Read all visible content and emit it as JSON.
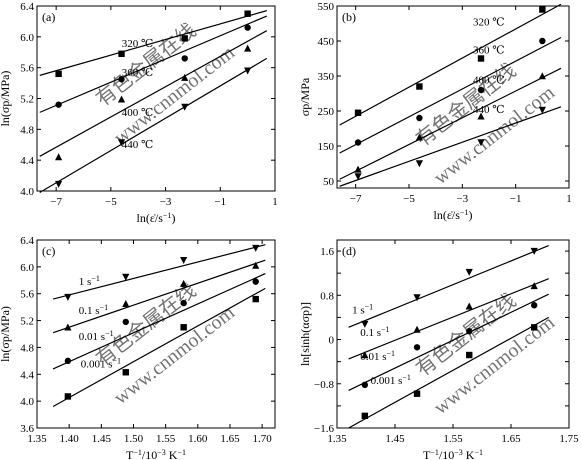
{
  "chart_data": [
    {
      "type": "scatter",
      "panel_label": "(a)",
      "xlabel": "ln(ε̇/s⁻¹)",
      "ylabel": "ln(σp/MPa)",
      "xlim": [
        -7.7,
        1
      ],
      "ylim": [
        4.0,
        6.4
      ],
      "xticks": [
        -7,
        -5,
        -3,
        -1,
        1
      ],
      "xtick_labels": [
        "−7",
        "−5",
        "−3",
        "−1",
        "1"
      ],
      "yticks": [
        4.0,
        4.4,
        4.8,
        5.2,
        5.6,
        6.0,
        6.4
      ],
      "ytick_labels": [
        "4.0",
        "4.4",
        "4.8",
        "5.2",
        "5.6",
        "6.0",
        "6.4"
      ],
      "series": [
        {
          "name": "320 ℃",
          "marker": "square",
          "label_at": [
            -4.6,
            5.87
          ],
          "x": [
            -6.91,
            -4.61,
            -2.3,
            0
          ],
          "y": [
            5.52,
            5.78,
            5.98,
            6.3
          ],
          "fit": [
            [
              -7.6,
              5.5
            ],
            [
              0.7,
              6.34
            ]
          ]
        },
        {
          "name": "360 ℃",
          "marker": "circle",
          "label_at": [
            -4.6,
            5.49
          ],
          "x": [
            -6.91,
            -4.61,
            -2.3,
            0
          ],
          "y": [
            5.12,
            5.45,
            5.72,
            6.12
          ],
          "fit": [
            [
              -7.6,
              5.02
            ],
            [
              0.7,
              6.27
            ]
          ]
        },
        {
          "name": "400 ℃",
          "marker": "triangle-up",
          "label_at": [
            -4.6,
            4.97
          ],
          "x": [
            -6.91,
            -4.61,
            -2.3,
            0
          ],
          "y": [
            4.44,
            5.19,
            5.47,
            5.85
          ],
          "fit": [
            [
              -7.6,
              4.45
            ],
            [
              0.7,
              6.08
            ]
          ]
        },
        {
          "name": "440 ℃",
          "marker": "triangle-down",
          "label_at": [
            -4.6,
            4.56
          ],
          "x": [
            -6.91,
            -4.61,
            -2.3,
            0
          ],
          "y": [
            4.09,
            4.63,
            5.09,
            5.56
          ],
          "fit": [
            [
              -7.6,
              3.98
            ],
            [
              0.7,
              5.72
            ]
          ]
        }
      ]
    },
    {
      "type": "scatter",
      "panel_label": "(b)",
      "xlabel": "ln(ε̇/s⁻¹)",
      "ylabel": "σp/MPa",
      "xlim": [
        -7.7,
        1
      ],
      "ylim": [
        30,
        550
      ],
      "xticks": [
        -7,
        -5,
        -3,
        -1,
        1
      ],
      "xtick_labels": [
        "−7",
        "−5",
        "−3",
        "−1",
        "1"
      ],
      "yticks": [
        50,
        150,
        250,
        350,
        450,
        550
      ],
      "ytick_labels": [
        "50",
        "150",
        "250",
        "350",
        "450",
        "550"
      ],
      "series": [
        {
          "name": "320 ℃",
          "marker": "square",
          "label_at": [
            -2.6,
            494
          ],
          "x": [
            -6.91,
            -4.61,
            -2.3,
            0
          ],
          "y": [
            245,
            320,
            400,
            540
          ],
          "fit": [
            [
              -7.6,
              210
            ],
            [
              0.7,
              555
            ]
          ]
        },
        {
          "name": "360 ℃",
          "marker": "circle",
          "label_at": [
            -2.6,
            415
          ],
          "x": [
            -6.91,
            -4.61,
            -2.3,
            0
          ],
          "y": [
            160,
            230,
            310,
            450
          ],
          "fit": [
            [
              -7.6,
              130
            ],
            [
              0.7,
              460
            ]
          ]
        },
        {
          "name": "400 ℃",
          "marker": "triangle-up",
          "label_at": [
            -2.6,
            328
          ],
          "x": [
            -6.91,
            -4.61,
            -2.3,
            0
          ],
          "y": [
            83,
            175,
            235,
            350
          ],
          "fit": [
            [
              -7.6,
              55
            ],
            [
              0.7,
              372
            ]
          ]
        },
        {
          "name": "440 ℃",
          "marker": "triangle-down",
          "label_at": [
            -2.6,
            244
          ],
          "x": [
            -6.91,
            -4.61,
            -2.3,
            0
          ],
          "y": [
            63,
            100,
            160,
            253
          ],
          "fit": [
            [
              -7.6,
              35
            ],
            [
              0.7,
              262
            ]
          ]
        }
      ]
    },
    {
      "type": "scatter",
      "panel_label": "(c)",
      "xlabel": "T⁻¹/10⁻³ K⁻¹",
      "ylabel": "ln(σp/MPa)",
      "xlim": [
        1.35,
        1.72
      ],
      "ylim": [
        3.6,
        6.4
      ],
      "xticks": [
        1.35,
        1.4,
        1.45,
        1.5,
        1.55,
        1.6,
        1.65,
        1.7
      ],
      "xtick_labels": [
        "1.35",
        "1.40",
        "1.45",
        "1.50",
        "1.55",
        "1.60",
        "1.65",
        "1.70"
      ],
      "yticks": [
        3.6,
        4.0,
        4.4,
        4.8,
        5.2,
        5.6,
        6.0,
        6.4
      ],
      "ytick_labels": [
        "3.6",
        "4.0",
        "4.4",
        "4.8",
        "5.2",
        "5.6",
        "6.0",
        "6.4"
      ],
      "series": [
        {
          "name": "1 s⁻¹",
          "marker": "triangle-down",
          "label_at": [
            1.415,
            5.73
          ],
          "x": [
            1.398,
            1.488,
            1.578,
            1.69
          ],
          "y": [
            5.55,
            5.85,
            6.1,
            6.28
          ],
          "fit": [
            [
              1.375,
              5.52
            ],
            [
              1.705,
              6.33
            ]
          ]
        },
        {
          "name": "0.1 s⁻¹",
          "marker": "triangle-up",
          "label_at": [
            1.415,
            5.3
          ],
          "x": [
            1.398,
            1.488,
            1.578,
            1.69
          ],
          "y": [
            5.1,
            5.45,
            5.75,
            6.02
          ],
          "fit": [
            [
              1.375,
              5.02
            ],
            [
              1.705,
              6.1
            ]
          ]
        },
        {
          "name": "0.01 s⁻¹",
          "marker": "circle",
          "label_at": [
            1.415,
            4.91
          ],
          "x": [
            1.398,
            1.488,
            1.578,
            1.69
          ],
          "y": [
            4.6,
            5.18,
            5.46,
            5.78
          ],
          "fit": [
            [
              1.375,
              4.48
            ],
            [
              1.705,
              5.9
            ]
          ]
        },
        {
          "name": "0.001 s⁻¹",
          "marker": "square",
          "label_at": [
            1.418,
            4.5
          ],
          "x": [
            1.398,
            1.488,
            1.578,
            1.69
          ],
          "y": [
            4.07,
            4.43,
            5.1,
            5.52
          ],
          "fit": [
            [
              1.375,
              3.92
            ],
            [
              1.705,
              5.68
            ]
          ]
        }
      ]
    },
    {
      "type": "scatter",
      "panel_label": "(d)",
      "xlabel": "T⁻¹/10⁻³ K⁻¹",
      "ylabel": "ln[sinh(ασp)]",
      "xlim": [
        1.35,
        1.75
      ],
      "ylim": [
        -1.6,
        1.8
      ],
      "xticks": [
        1.35,
        1.45,
        1.55,
        1.65,
        1.75
      ],
      "xtick_labels": [
        "1.35",
        "1.45",
        "1.55",
        "1.65",
        "1.75"
      ],
      "yticks": [
        -1.6,
        -1.2,
        -0.8,
        -0.4,
        0,
        0.4,
        0.8,
        1.2,
        1.6
      ],
      "ytick_labels": [
        "−1.6",
        "",
        "−0.8",
        "",
        "0",
        "",
        "0.8",
        "",
        "1.6"
      ],
      "series": [
        {
          "name": "1 s⁻¹",
          "marker": "triangle-down",
          "label_at": [
            1.376,
            0.47
          ],
          "x": [
            1.398,
            1.488,
            1.578,
            1.69
          ],
          "y": [
            0.28,
            0.76,
            1.22,
            1.6
          ],
          "fit": [
            [
              1.37,
              0.22
            ],
            [
              1.715,
              1.7
            ]
          ]
        },
        {
          "name": "0.1 s⁻¹",
          "marker": "triangle-up",
          "label_at": [
            1.39,
            0.06
          ],
          "x": [
            1.398,
            1.488,
            1.578,
            1.69
          ],
          "y": [
            -0.28,
            0.18,
            0.6,
            0.97
          ],
          "fit": [
            [
              1.37,
              -0.35
            ],
            [
              1.715,
              1.1
            ]
          ]
        },
        {
          "name": "0.01 s⁻¹",
          "marker": "circle",
          "label_at": [
            1.39,
            -0.37
          ],
          "x": [
            1.398,
            1.488,
            1.578,
            1.69
          ],
          "y": [
            -0.82,
            -0.14,
            0.15,
            0.62
          ],
          "fit": [
            [
              1.37,
              -0.92
            ],
            [
              1.715,
              0.82
            ]
          ]
        },
        {
          "name": "0.001 s⁻¹",
          "marker": "square",
          "label_at": [
            1.408,
            -0.8
          ],
          "x": [
            1.398,
            1.488,
            1.578,
            1.69
          ],
          "y": [
            -1.38,
            -0.98,
            -0.28,
            0.22
          ],
          "fit": [
            [
              1.37,
              -1.6
            ],
            [
              1.715,
              0.4
            ]
          ]
        }
      ]
    }
  ],
  "watermark": {
    "chinese": "有色金属在线",
    "url": "www.cnnmol.com"
  }
}
